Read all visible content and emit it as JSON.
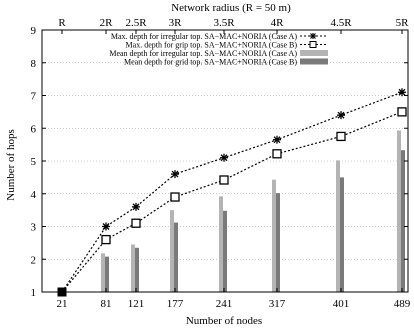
{
  "chart_data": {
    "type": "bar+line",
    "top_axis_label": "Network radius (R = 50 m)",
    "top_ticks": [
      "R",
      "2R",
      "2.5R",
      "3R",
      "3.5R",
      "4R",
      "4.5R",
      "5R"
    ],
    "xlabel": "Number of nodes",
    "ylabel": "Number of hops",
    "categories": [
      "21",
      "81",
      "121",
      "177",
      "241",
      "317",
      "401",
      "489"
    ],
    "ylim": [
      1,
      9
    ],
    "yticks": [
      "1",
      "2",
      "3",
      "4",
      "5",
      "6",
      "7",
      "8",
      "9"
    ],
    "line_series": [
      {
        "name": "Max. depth for irregular top. SA−MAC+NORIA (Case A)",
        "marker": "asterisk",
        "values": [
          1,
          3.0,
          3.6,
          4.6,
          5.1,
          5.65,
          6.4,
          7.1
        ]
      },
      {
        "name": "Max. depth for grip top. SA−MAC+NORIA (Case B)",
        "marker": "square",
        "values": [
          1,
          2.6,
          3.1,
          3.9,
          4.42,
          5.22,
          5.75,
          6.5
        ]
      }
    ],
    "bar_series": [
      {
        "name": "Mean depth for irregular top. SA−MAC+NORIA (Case A)",
        "color": "#b4b4b4",
        "values": [
          1,
          2.18,
          2.45,
          3.5,
          3.92,
          4.43,
          5.02,
          5.93
        ]
      },
      {
        "name": "Mean depth for grid top. SA−MAC+NORIA (Case B)",
        "color": "#7a7a7a",
        "values": [
          1,
          2.08,
          2.35,
          3.12,
          3.48,
          4.02,
          4.5,
          5.33
        ]
      }
    ],
    "first_point_marker_color": "#000000"
  }
}
